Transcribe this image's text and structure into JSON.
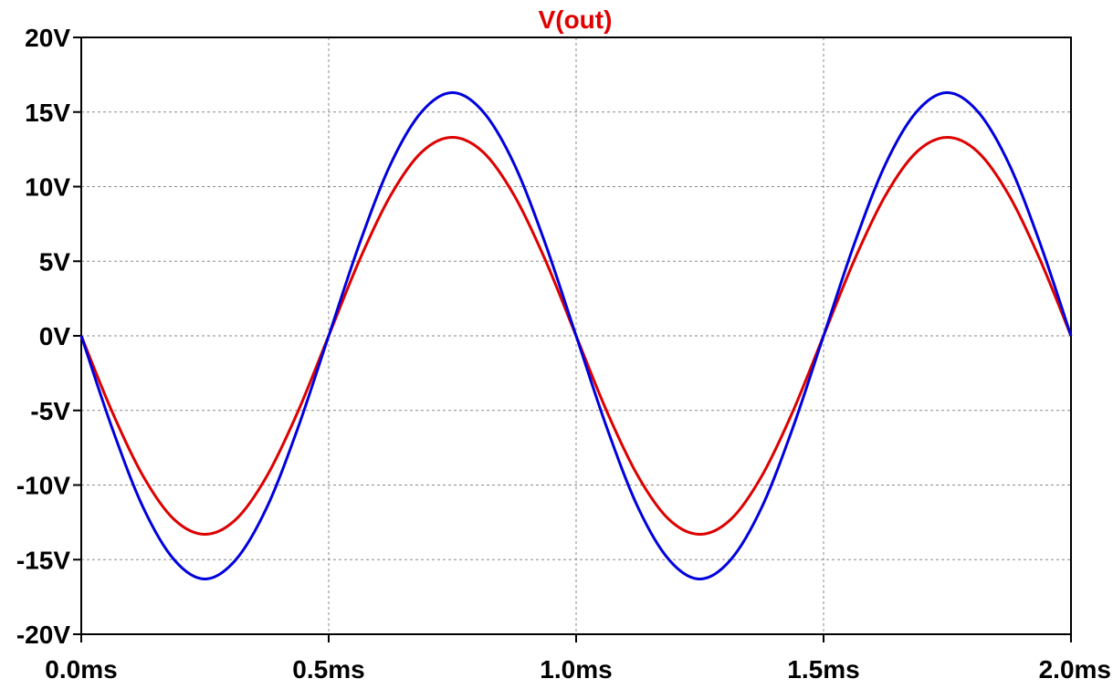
{
  "chart_data": {
    "type": "line",
    "title": "V(out)",
    "title_color": "#e00000",
    "xlabel": "",
    "ylabel": "",
    "xlim": [
      0.0,
      2.0
    ],
    "ylim": [
      -20,
      20
    ],
    "x_unit": "ms",
    "y_unit": "V",
    "grid": true,
    "legend": "none",
    "xticks": [
      {
        "value": 0.0,
        "label": "0.0ms"
      },
      {
        "value": 0.5,
        "label": "0.5ms"
      },
      {
        "value": 1.0,
        "label": "1.0ms"
      },
      {
        "value": 1.5,
        "label": "1.5ms"
      },
      {
        "value": 2.0,
        "label": "2.0ms"
      }
    ],
    "yticks": [
      {
        "value": 20,
        "label": "20V"
      },
      {
        "value": 15,
        "label": "15V"
      },
      {
        "value": 10,
        "label": "10V"
      },
      {
        "value": 5,
        "label": "5V"
      },
      {
        "value": 0,
        "label": "0V"
      },
      {
        "value": -5,
        "label": "-5V"
      },
      {
        "value": -10,
        "label": "-10V"
      },
      {
        "value": -15,
        "label": "-15V"
      },
      {
        "value": -20,
        "label": "-20V"
      }
    ],
    "series": [
      {
        "color": "#dd0000",
        "x": [
          0.0,
          0.0625,
          0.125,
          0.1875,
          0.25,
          0.3125,
          0.375,
          0.4375,
          0.5,
          0.5625,
          0.625,
          0.6875,
          0.75,
          0.8125,
          0.875,
          0.9375,
          1.0,
          1.0625,
          1.125,
          1.1875,
          1.25,
          1.3125,
          1.375,
          1.4375,
          1.5,
          1.5625,
          1.625,
          1.6875,
          1.75,
          1.8125,
          1.875,
          1.9375,
          2.0
        ],
        "values": [
          0.0,
          -5.1,
          -9.4,
          -12.3,
          -13.3,
          -12.3,
          -9.4,
          -5.1,
          0.0,
          5.1,
          9.4,
          12.3,
          13.3,
          12.3,
          9.4,
          5.1,
          0.0,
          -5.1,
          -9.4,
          -12.3,
          -13.3,
          -12.3,
          -9.4,
          -5.1,
          0.0,
          5.1,
          9.4,
          12.3,
          13.3,
          12.3,
          9.4,
          5.1,
          0.0
        ]
      },
      {
        "color": "#0000dd",
        "x": [
          0.0,
          0.0625,
          0.125,
          0.1875,
          0.25,
          0.3125,
          0.375,
          0.4375,
          0.5,
          0.5625,
          0.625,
          0.6875,
          0.75,
          0.8125,
          0.875,
          0.9375,
          1.0,
          1.0625,
          1.125,
          1.1875,
          1.25,
          1.3125,
          1.375,
          1.4375,
          1.5,
          1.5625,
          1.625,
          1.6875,
          1.75,
          1.8125,
          1.875,
          1.9375,
          2.0
        ],
        "values": [
          0.0,
          -6.2,
          -11.5,
          -15.0,
          -16.3,
          -15.0,
          -11.5,
          -6.2,
          0.0,
          6.2,
          11.5,
          15.0,
          16.3,
          15.0,
          11.5,
          6.2,
          0.0,
          -6.2,
          -11.5,
          -15.0,
          -16.3,
          -15.0,
          -11.5,
          -6.2,
          0.0,
          6.2,
          11.5,
          15.0,
          16.3,
          15.0,
          11.5,
          6.2,
          0.0
        ]
      }
    ]
  }
}
